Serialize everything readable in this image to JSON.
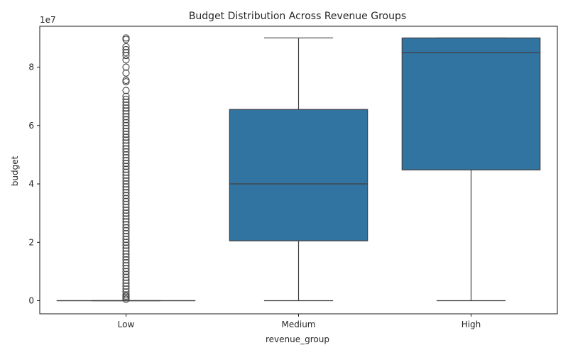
{
  "chart_data": {
    "type": "box",
    "title": "Budget Distribution Across Revenue Groups",
    "xlabel": "revenue_group",
    "ylabel": "budget",
    "offset_text": "1e7",
    "categories": [
      "Low",
      "Medium",
      "High"
    ],
    "y_ticks": [
      0,
      20000000,
      40000000,
      60000000,
      80000000
    ],
    "y_tick_labels": [
      "0",
      "2",
      "4",
      "6",
      "8"
    ],
    "ylim": [
      -4500000,
      94000000
    ],
    "box_color": "#3274a1",
    "boxes": [
      {
        "category": "Low",
        "whisker_low": 0,
        "q1": 0,
        "median": 0,
        "q3": 0,
        "whisker_high": 0,
        "outliers": [
          90000000,
          89500000,
          87000000,
          86000000,
          85000000,
          84000000,
          82500000,
          80000000,
          78000000,
          75500000,
          75000000,
          72000000,
          70000000,
          69000000,
          68000000,
          67000000,
          66000000,
          65000000,
          64000000,
          63000000,
          62000000,
          61000000,
          60000000,
          59000000,
          58000000,
          57000000,
          56000000,
          55000000,
          54000000,
          53000000,
          52000000,
          51000000,
          50000000,
          49000000,
          48000000,
          47000000,
          46000000,
          45000000,
          44000000,
          43000000,
          42000000,
          41000000,
          40000000,
          39000000,
          38000000,
          37000000,
          36000000,
          35000000,
          34000000,
          33000000,
          32000000,
          31000000,
          30000000,
          29000000,
          28000000,
          27000000,
          26000000,
          25000000,
          24000000,
          23000000,
          22000000,
          21000000,
          20000000,
          19000000,
          18000000,
          17000000,
          16000000,
          15000000,
          14000000,
          13000000,
          12000000,
          11000000,
          10000000,
          9000000,
          8000000,
          7000000,
          6000000,
          5000000,
          4000000,
          3000000,
          2000000,
          1500000,
          1000000,
          500000
        ]
      },
      {
        "category": "Medium",
        "whisker_low": 0,
        "q1": 20500000,
        "median": 40000000,
        "q3": 65500000,
        "whisker_high": 90000000,
        "outliers": []
      },
      {
        "category": "High",
        "whisker_low": 0,
        "q1": 44800000,
        "median": 85000000,
        "q3": 90000000,
        "whisker_high": 90000000,
        "outliers": []
      }
    ]
  }
}
